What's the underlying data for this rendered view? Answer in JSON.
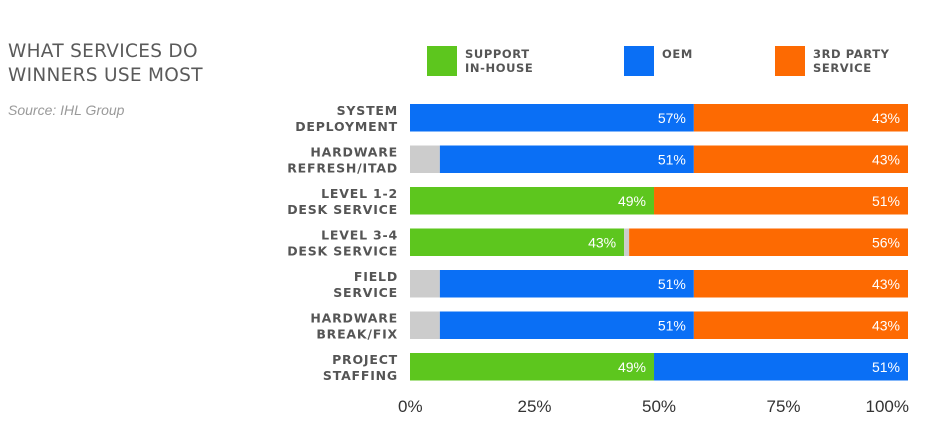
{
  "header": {
    "title_lines": [
      "WHAT SERVICES DO",
      "WINNERS USE MOST"
    ],
    "source": "Source: IHL Group"
  },
  "legend": [
    {
      "lines": [
        "SUPPORT",
        "IN-HOUSE"
      ],
      "color": "#5dc61e"
    },
    {
      "lines": [
        "OEM"
      ],
      "color": "#0a6ff5"
    },
    {
      "lines": [
        "3RD PARTY",
        "SERVICE"
      ],
      "color": "#fd6a02"
    }
  ],
  "chart_data": {
    "type": "bar",
    "orientation": "horizontal",
    "stacked": true,
    "categories": [
      [
        "SYSTEM",
        "DEPLOYMENT"
      ],
      [
        "HARDWARE",
        "REFRESH/ITAD"
      ],
      [
        "LEVEL 1-2",
        "DESK SERVICE"
      ],
      [
        "LEVEL 3-4",
        "DESK SERVICE"
      ],
      [
        "FIELD",
        "SERVICE"
      ],
      [
        "HARDWARE",
        "BREAK/FIX"
      ],
      [
        "PROJECT",
        "STAFFING"
      ]
    ],
    "series": [
      {
        "name": "SUPPORT IN-HOUSE",
        "color": "#5dc61e",
        "values": [
          0,
          0,
          49,
          43,
          0,
          0,
          49
        ],
        "labels": [
          "",
          "",
          "49%",
          "43%",
          "",
          "",
          "49%"
        ]
      },
      {
        "color": "#cccccc",
        "values": [
          0,
          6,
          0,
          1,
          6,
          6,
          0
        ],
        "labels": [
          "",
          "",
          "",
          "",
          "",
          "",
          ""
        ]
      },
      {
        "name": "OEM",
        "color": "#0a6ff5",
        "values": [
          57,
          51,
          0,
          0,
          51,
          51,
          51
        ],
        "labels": [
          "57%",
          "51%",
          "",
          "",
          "51%",
          "51%",
          "51%"
        ]
      },
      {
        "name": "3RD PARTY SERVICE",
        "color": "#fd6a02",
        "values": [
          43,
          43,
          51,
          56,
          43,
          43,
          0
        ],
        "labels": [
          "43%",
          "43%",
          "51%",
          "56%",
          "43%",
          "43%",
          ""
        ]
      }
    ],
    "xlim": [
      0,
      100
    ],
    "xticks": [
      "0%",
      "25%",
      "50%",
      "75%",
      "100%"
    ],
    "grid": false
  }
}
